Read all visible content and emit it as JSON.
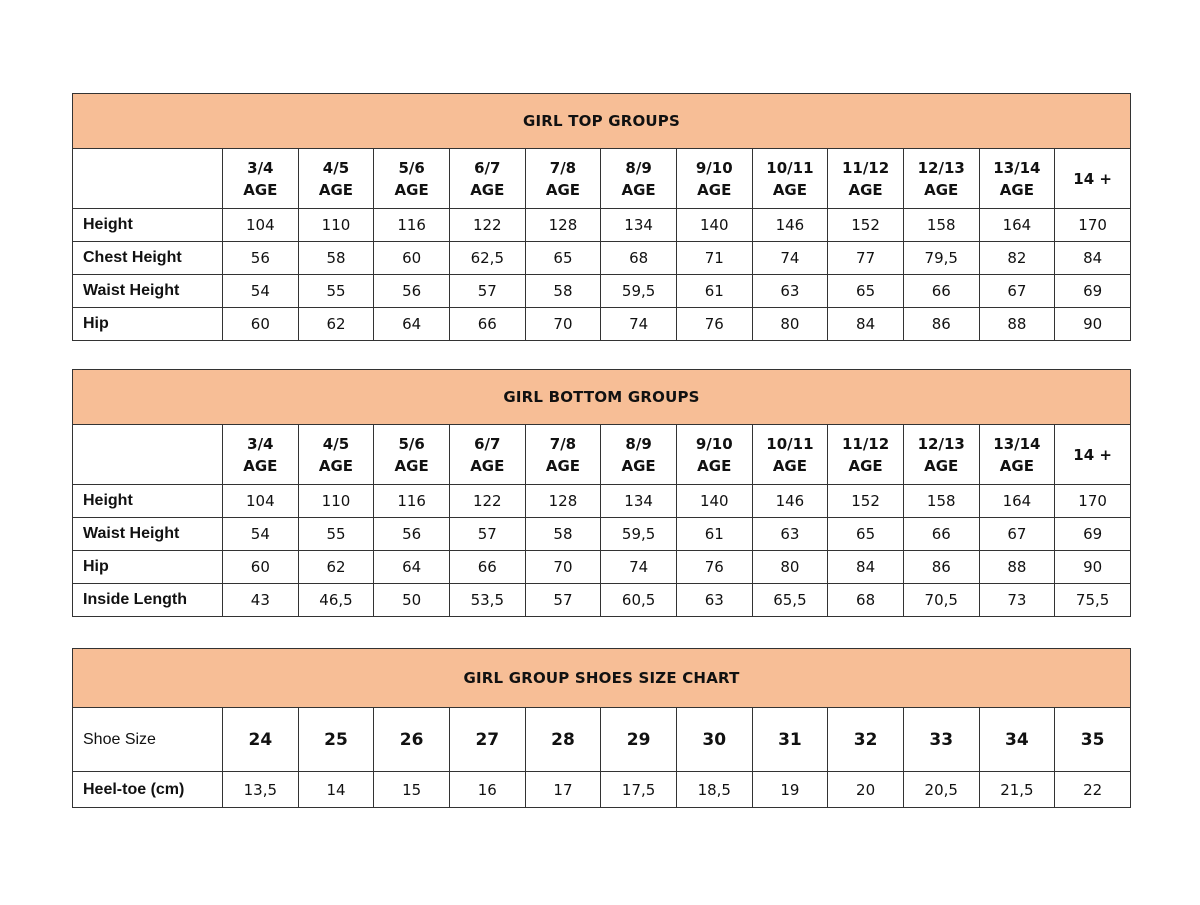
{
  "colors": {
    "header_bg": "#F7BE96",
    "border": "#333333"
  },
  "top_groups": {
    "title": "GIRL TOP GROUPS",
    "columns": [
      "3/4\nAGE",
      "4/5\nAGE",
      "5/6\nAGE",
      "6/7\nAGE",
      "7/8\nAGE",
      "8/9\nAGE",
      "9/10\nAGE",
      "10/11\nAGE",
      "11/12\nAGE",
      "12/13\nAGE",
      "13/14\nAGE",
      "14 +"
    ],
    "rows": [
      {
        "label": "Height",
        "values": [
          "104",
          "110",
          "116",
          "122",
          "128",
          "134",
          "140",
          "146",
          "152",
          "158",
          "164",
          "170"
        ]
      },
      {
        "label": "Chest Height",
        "values": [
          "56",
          "58",
          "60",
          "62,5",
          "65",
          "68",
          "71",
          "74",
          "77",
          "79,5",
          "82",
          "84"
        ]
      },
      {
        "label": "Waist Height",
        "values": [
          "54",
          "55",
          "56",
          "57",
          "58",
          "59,5",
          "61",
          "63",
          "65",
          "66",
          "67",
          "69"
        ]
      },
      {
        "label": "Hip",
        "values": [
          "60",
          "62",
          "64",
          "66",
          "70",
          "74",
          "76",
          "80",
          "84",
          "86",
          "88",
          "90"
        ]
      }
    ]
  },
  "bottom_groups": {
    "title": "GIRL BOTTOM GROUPS",
    "columns": [
      "3/4\nAGE",
      "4/5\nAGE",
      "5/6\nAGE",
      "6/7\nAGE",
      "7/8\nAGE",
      "8/9\nAGE",
      "9/10\nAGE",
      "10/11\nAGE",
      "11/12\nAGE",
      "12/13\nAGE",
      "13/14\nAGE",
      "14 +"
    ],
    "rows": [
      {
        "label": "Height",
        "values": [
          "104",
          "110",
          "116",
          "122",
          "128",
          "134",
          "140",
          "146",
          "152",
          "158",
          "164",
          "170"
        ]
      },
      {
        "label": "Waist Height",
        "values": [
          "54",
          "55",
          "56",
          "57",
          "58",
          "59,5",
          "61",
          "63",
          "65",
          "66",
          "67",
          "69"
        ]
      },
      {
        "label": "Hip",
        "values": [
          "60",
          "62",
          "64",
          "66",
          "70",
          "74",
          "76",
          "80",
          "84",
          "86",
          "88",
          "90"
        ]
      },
      {
        "label": "Inside Length",
        "values": [
          "43",
          "46,5",
          "50",
          "53,5",
          "57",
          "60,5",
          "63",
          "65,5",
          "68",
          "70,5",
          "73",
          "75,5"
        ]
      }
    ]
  },
  "shoes": {
    "title": "GIRL GROUP SHOES SIZE CHART",
    "size_label": "Shoe Size",
    "sizes": [
      "24",
      "25",
      "26",
      "27",
      "28",
      "29",
      "30",
      "31",
      "32",
      "33",
      "34",
      "35"
    ],
    "heel_label": "Heel-toe (cm)",
    "heel_toe": [
      "13,5",
      "14",
      "15",
      "16",
      "17",
      "17,5",
      "18,5",
      "19",
      "20",
      "20,5",
      "21,5",
      "22"
    ]
  }
}
